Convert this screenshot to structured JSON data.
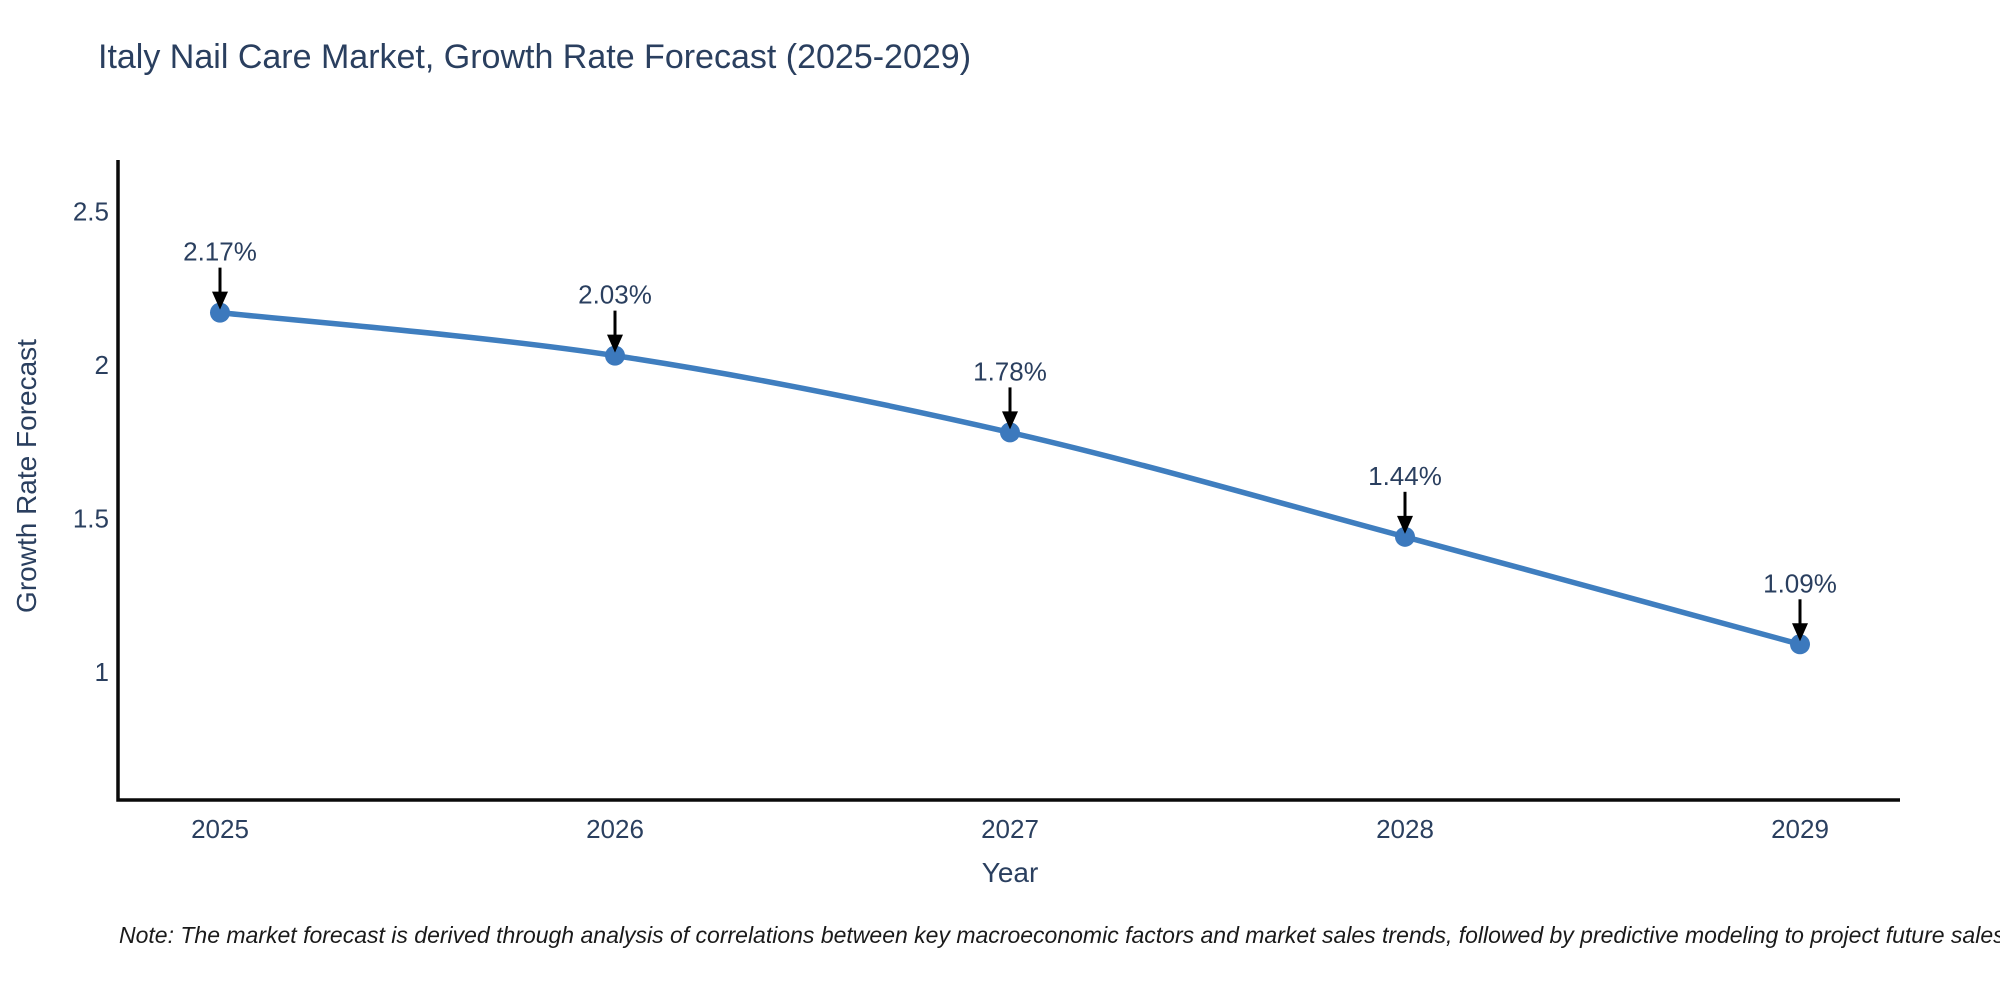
{
  "chart_data": {
    "type": "line",
    "title": "Italy Nail Care Market, Growth Rate Forecast (2025-2029)",
    "xlabel": "Year",
    "ylabel": "Growth Rate Forecast",
    "categories": [
      "2025",
      "2026",
      "2027",
      "2028",
      "2029"
    ],
    "series": [
      {
        "name": "Growth Rate Forecast",
        "values": [
          2.17,
          2.03,
          1.78,
          1.44,
          1.09
        ]
      }
    ],
    "point_labels": [
      "2.17%",
      "2.03%",
      "1.78%",
      "1.44%",
      "1.09%"
    ],
    "yticks": [
      1,
      1.5,
      2,
      2.5
    ],
    "ytick_labels": [
      "1",
      "1.5",
      "2",
      "2.5"
    ],
    "ylim": [
      0.583,
      2.667
    ],
    "grid": false,
    "legend_position": "none",
    "annotations_have_arrows": true,
    "colors": {
      "line": "#3f7ebf",
      "marker": "#3c79bd",
      "axis": "#0a0a0a",
      "text": "#2a3f5f",
      "annotation_arrow": "#000000"
    }
  },
  "note": "Note: The market forecast is derived through analysis of correlations between key macroeconomic factors and market sales trends, followed by predictive modeling to project future sales"
}
